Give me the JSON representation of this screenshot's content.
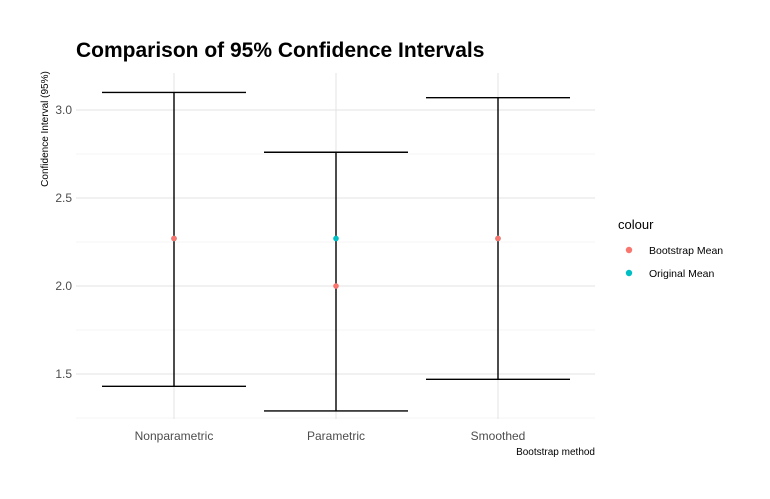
{
  "chart_data": {
    "type": "errorbar",
    "title": "Comparison of 95% Confidence Intervals",
    "xlabel": "Bootstrap method",
    "ylabel": "Confidence Interval (95%)",
    "categories": [
      "Nonparametric",
      "Parametric",
      "Smoothed"
    ],
    "intervals": [
      {
        "category": "Nonparametric",
        "lower": 1.43,
        "upper": 3.1
      },
      {
        "category": "Parametric",
        "lower": 1.29,
        "upper": 2.76
      },
      {
        "category": "Smoothed",
        "lower": 1.47,
        "upper": 3.07
      }
    ],
    "series": [
      {
        "name": "Bootstrap Mean",
        "color": "#F8766D",
        "values": [
          2.27,
          2.0,
          2.27
        ]
      },
      {
        "name": "Original Mean",
        "color": "#00BFC4",
        "values": [
          2.27,
          2.27,
          2.27
        ]
      }
    ],
    "yticks": [
      1.5,
      2.0,
      2.5,
      3.0
    ],
    "ytick_labels": [
      "1.5",
      "2.0",
      "2.5",
      "3.0"
    ],
    "ylim": [
      1.25,
      3.19
    ],
    "grid": true,
    "legend": {
      "title": "colour",
      "position": "right"
    }
  }
}
